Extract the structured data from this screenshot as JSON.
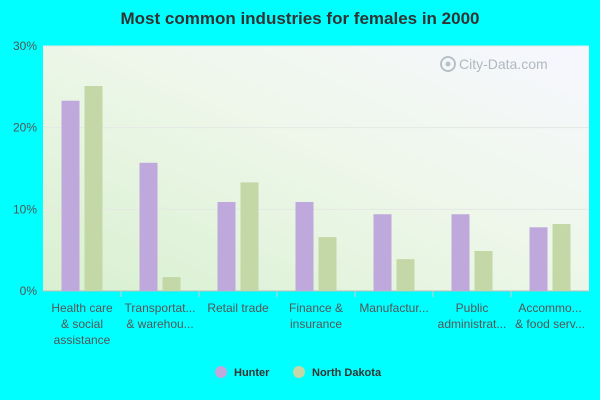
{
  "chart_data": {
    "type": "bar",
    "title": "Most common industries for females in 2000",
    "categories": [
      [
        "Health care",
        "& social",
        "assistance"
      ],
      [
        "Transportat...",
        "& warehou..."
      ],
      [
        "Retail trade"
      ],
      [
        "Finance &",
        "insurance"
      ],
      [
        "Manufactur..."
      ],
      [
        "Public",
        "administrat..."
      ],
      [
        "Accommo...",
        "& food serv..."
      ]
    ],
    "series": [
      {
        "name": "Hunter",
        "color": "#bfa8dc",
        "values": [
          23.3,
          15.7,
          10.9,
          10.9,
          9.4,
          9.4,
          7.8
        ]
      },
      {
        "name": "North Dakota",
        "color": "#c3d8a6",
        "values": [
          25.1,
          1.7,
          13.3,
          6.6,
          3.9,
          4.9,
          8.2
        ]
      }
    ],
    "ylim": [
      0,
      30
    ],
    "yticks": [
      0,
      10,
      20,
      30
    ],
    "ytick_labels": [
      "0%",
      "10%",
      "20%",
      "30%"
    ],
    "legend_position": "bottom-center",
    "watermark": "City-Data.com"
  }
}
